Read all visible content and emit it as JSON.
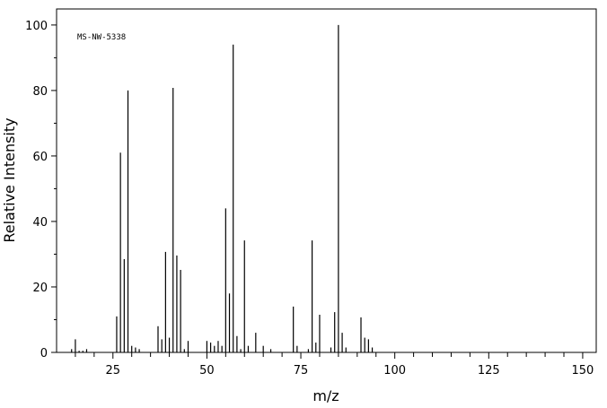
{
  "chart_data": {
    "type": "bar",
    "annotation": "MS-NW-5338",
    "xlabel": "m/z",
    "ylabel": "Relative Intensity",
    "x": [
      14,
      15,
      16,
      17,
      18,
      26,
      27,
      28,
      29,
      30,
      31,
      32,
      37,
      38,
      39,
      40,
      41,
      42,
      43,
      44,
      45,
      50,
      51,
      52,
      53,
      54,
      55,
      56,
      57,
      58,
      59,
      60,
      61,
      63,
      65,
      67,
      73,
      74,
      77,
      78,
      79,
      80,
      83,
      84,
      85,
      86,
      87,
      91,
      92,
      93,
      94
    ],
    "values": [
      1,
      4,
      0.5,
      0.5,
      1,
      11,
      61,
      28.5,
      80,
      2,
      1.5,
      1,
      8,
      4,
      30.7,
      4.5,
      80.8,
      29.6,
      25.2,
      1,
      3.5,
      3.5,
      3,
      2,
      3.5,
      2,
      44,
      18,
      94,
      5,
      1,
      34.2,
      2,
      6,
      2,
      1,
      14,
      2,
      1,
      34.2,
      3,
      11.5,
      1.5,
      12.3,
      100,
      6,
      1.5,
      10.7,
      4.5,
      4,
      1.5
    ],
    "color": "#000000",
    "xlim": [
      10,
      153.6
    ],
    "ylim": [
      0,
      104.9
    ],
    "xticks": [
      25,
      50,
      75,
      100,
      125,
      150
    ],
    "yticks": [
      0,
      20,
      40,
      60,
      80,
      100
    ],
    "xminorticks": [
      15,
      20,
      30,
      35,
      40,
      45,
      55,
      60,
      65,
      70,
      80,
      85,
      90,
      95,
      105,
      110,
      115,
      120,
      130,
      135,
      140,
      145
    ],
    "yminorticks": [
      10,
      30,
      50,
      70,
      90
    ]
  }
}
